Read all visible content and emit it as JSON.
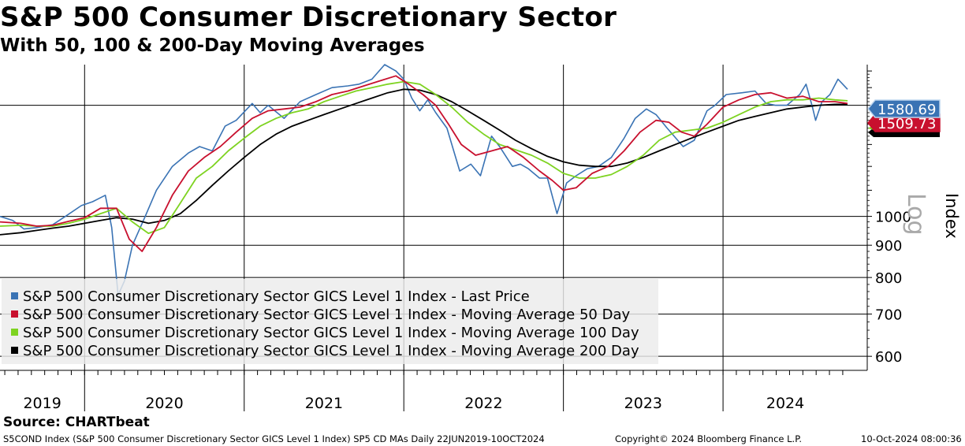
{
  "header": {
    "title": "S&P 500 Consumer Discretionary Sector",
    "subtitle": "With 50, 100 & 200-Day Moving Averages"
  },
  "footer": {
    "source": "Source: CHARTbeat",
    "description": "S5COND Index (S&P 500 Consumer Discretionary Sector GICS Level 1 Index) SP5 CD MAs  Daily 22JUN2019-10OCT2024",
    "copyright": "Copyright© 2024 Bloomberg Finance L.P.",
    "timestamp": "10-Oct-2024 08:00:36"
  },
  "colors": {
    "last_price": "#3a73b4",
    "ma50": "#c8102e",
    "ma100": "#7ed321",
    "ma200": "#000000",
    "label_box": "#3a73b4",
    "label_border": "#bcd5ef"
  },
  "chart_data": {
    "type": "line",
    "scale": "log",
    "title": "S&P 500 Consumer Discretionary Sector",
    "subtitle": "With 50, 100 & 200-Day Moving Averages",
    "ylabel": "Index",
    "scale_label": "Log",
    "ylim": [
      570,
      1740
    ],
    "y_ticks": [
      600,
      700,
      800,
      900,
      1000
    ],
    "x_range": [
      2019.47,
      2024.78
    ],
    "x_ticks": [
      "2019",
      "2020",
      "2021",
      "2022",
      "2023",
      "2024"
    ],
    "grid": true,
    "legend_position": "bottom-left",
    "last_values": {
      "last_price": "1580.69",
      "ma50": "1509.73"
    },
    "series": [
      {
        "name": "S&P 500 Consumer Discretionary Sector GICS Level 1 Index - Last Price",
        "color": "#3a73b4",
        "points": [
          [
            2019.47,
            1000
          ],
          [
            2019.55,
            985
          ],
          [
            2019.62,
            955
          ],
          [
            2019.7,
            960
          ],
          [
            2019.8,
            970
          ],
          [
            2019.88,
            1000
          ],
          [
            2019.98,
            1040
          ],
          [
            2020.05,
            1055
          ],
          [
            2020.13,
            1080
          ],
          [
            2020.17,
            960
          ],
          [
            2020.21,
            750
          ],
          [
            2020.25,
            790
          ],
          [
            2020.3,
            900
          ],
          [
            2020.38,
            1000
          ],
          [
            2020.45,
            1100
          ],
          [
            2020.55,
            1200
          ],
          [
            2020.65,
            1260
          ],
          [
            2020.72,
            1290
          ],
          [
            2020.8,
            1270
          ],
          [
            2020.88,
            1390
          ],
          [
            2020.95,
            1420
          ],
          [
            2021.05,
            1510
          ],
          [
            2021.1,
            1460
          ],
          [
            2021.15,
            1500
          ],
          [
            2021.25,
            1430
          ],
          [
            2021.35,
            1520
          ],
          [
            2021.45,
            1560
          ],
          [
            2021.55,
            1600
          ],
          [
            2021.65,
            1610
          ],
          [
            2021.72,
            1620
          ],
          [
            2021.8,
            1650
          ],
          [
            2021.88,
            1740
          ],
          [
            2021.95,
            1700
          ],
          [
            2022.0,
            1650
          ],
          [
            2022.05,
            1540
          ],
          [
            2022.1,
            1470
          ],
          [
            2022.15,
            1530
          ],
          [
            2022.2,
            1460
          ],
          [
            2022.27,
            1380
          ],
          [
            2022.35,
            1180
          ],
          [
            2022.42,
            1210
          ],
          [
            2022.48,
            1160
          ],
          [
            2022.55,
            1340
          ],
          [
            2022.6,
            1290
          ],
          [
            2022.68,
            1200
          ],
          [
            2022.73,
            1210
          ],
          [
            2022.78,
            1190
          ],
          [
            2022.85,
            1150
          ],
          [
            2022.9,
            1150
          ],
          [
            2022.96,
            1010
          ],
          [
            2023.02,
            1130
          ],
          [
            2023.08,
            1160
          ],
          [
            2023.15,
            1190
          ],
          [
            2023.22,
            1200
          ],
          [
            2023.3,
            1240
          ],
          [
            2023.38,
            1330
          ],
          [
            2023.45,
            1430
          ],
          [
            2023.52,
            1480
          ],
          [
            2023.58,
            1450
          ],
          [
            2023.65,
            1380
          ],
          [
            2023.75,
            1290
          ],
          [
            2023.82,
            1320
          ],
          [
            2023.9,
            1470
          ],
          [
            2023.95,
            1500
          ],
          [
            2024.02,
            1560
          ],
          [
            2024.12,
            1570
          ],
          [
            2024.2,
            1580
          ],
          [
            2024.27,
            1510
          ],
          [
            2024.33,
            1500
          ],
          [
            2024.4,
            1500
          ],
          [
            2024.48,
            1560
          ],
          [
            2024.52,
            1620
          ],
          [
            2024.56,
            1490
          ],
          [
            2024.58,
            1420
          ],
          [
            2024.62,
            1520
          ],
          [
            2024.67,
            1560
          ],
          [
            2024.72,
            1650
          ],
          [
            2024.75,
            1620
          ],
          [
            2024.78,
            1590
          ]
        ]
      },
      {
        "name": "S&P 500 Consumer Discretionary Sector GICS Level 1 Index - Moving Average 50 Day",
        "color": "#c8102e",
        "points": [
          [
            2019.47,
            980
          ],
          [
            2019.6,
            975
          ],
          [
            2019.7,
            965
          ],
          [
            2019.8,
            968
          ],
          [
            2019.9,
            982
          ],
          [
            2020.0,
            995
          ],
          [
            2020.1,
            1030
          ],
          [
            2020.2,
            1030
          ],
          [
            2020.28,
            920
          ],
          [
            2020.36,
            880
          ],
          [
            2020.45,
            960
          ],
          [
            2020.55,
            1080
          ],
          [
            2020.65,
            1180
          ],
          [
            2020.75,
            1240
          ],
          [
            2020.85,
            1290
          ],
          [
            2020.95,
            1360
          ],
          [
            2021.05,
            1430
          ],
          [
            2021.15,
            1470
          ],
          [
            2021.25,
            1480
          ],
          [
            2021.35,
            1490
          ],
          [
            2021.45,
            1520
          ],
          [
            2021.55,
            1560
          ],
          [
            2021.65,
            1580
          ],
          [
            2021.75,
            1610
          ],
          [
            2021.85,
            1640
          ],
          [
            2021.95,
            1670
          ],
          [
            2022.03,
            1620
          ],
          [
            2022.12,
            1560
          ],
          [
            2022.2,
            1500
          ],
          [
            2022.28,
            1400
          ],
          [
            2022.36,
            1300
          ],
          [
            2022.45,
            1250
          ],
          [
            2022.55,
            1270
          ],
          [
            2022.65,
            1290
          ],
          [
            2022.75,
            1240
          ],
          [
            2022.85,
            1180
          ],
          [
            2022.93,
            1140
          ],
          [
            2023.0,
            1100
          ],
          [
            2023.08,
            1110
          ],
          [
            2023.18,
            1170
          ],
          [
            2023.28,
            1200
          ],
          [
            2023.38,
            1270
          ],
          [
            2023.48,
            1360
          ],
          [
            2023.58,
            1420
          ],
          [
            2023.66,
            1410
          ],
          [
            2023.74,
            1360
          ],
          [
            2023.82,
            1340
          ],
          [
            2023.9,
            1400
          ],
          [
            2024.0,
            1490
          ],
          [
            2024.1,
            1530
          ],
          [
            2024.2,
            1560
          ],
          [
            2024.3,
            1570
          ],
          [
            2024.4,
            1540
          ],
          [
            2024.5,
            1550
          ],
          [
            2024.6,
            1520
          ],
          [
            2024.7,
            1520
          ],
          [
            2024.78,
            1510
          ]
        ]
      },
      {
        "name": "S&P 500 Consumer Discretionary Sector GICS Level 1 Index - Moving Average 100 Day",
        "color": "#7ed321",
        "points": [
          [
            2019.47,
            965
          ],
          [
            2019.6,
            968
          ],
          [
            2019.7,
            965
          ],
          [
            2019.8,
            965
          ],
          [
            2019.9,
            975
          ],
          [
            2020.0,
            990
          ],
          [
            2020.1,
            1010
          ],
          [
            2020.2,
            1030
          ],
          [
            2020.3,
            980
          ],
          [
            2020.4,
            940
          ],
          [
            2020.5,
            960
          ],
          [
            2020.6,
            1050
          ],
          [
            2020.7,
            1150
          ],
          [
            2020.8,
            1200
          ],
          [
            2020.9,
            1270
          ],
          [
            2021.0,
            1330
          ],
          [
            2021.1,
            1390
          ],
          [
            2021.2,
            1430
          ],
          [
            2021.3,
            1460
          ],
          [
            2021.4,
            1480
          ],
          [
            2021.5,
            1520
          ],
          [
            2021.6,
            1550
          ],
          [
            2021.7,
            1580
          ],
          [
            2021.8,
            1600
          ],
          [
            2021.9,
            1620
          ],
          [
            2022.0,
            1635
          ],
          [
            2022.1,
            1620
          ],
          [
            2022.2,
            1560
          ],
          [
            2022.3,
            1490
          ],
          [
            2022.4,
            1410
          ],
          [
            2022.5,
            1350
          ],
          [
            2022.6,
            1300
          ],
          [
            2022.7,
            1275
          ],
          [
            2022.8,
            1250
          ],
          [
            2022.9,
            1215
          ],
          [
            2023.0,
            1170
          ],
          [
            2023.1,
            1150
          ],
          [
            2023.2,
            1150
          ],
          [
            2023.3,
            1165
          ],
          [
            2023.4,
            1200
          ],
          [
            2023.5,
            1250
          ],
          [
            2023.6,
            1320
          ],
          [
            2023.7,
            1360
          ],
          [
            2023.8,
            1370
          ],
          [
            2023.9,
            1380
          ],
          [
            2024.0,
            1410
          ],
          [
            2024.1,
            1450
          ],
          [
            2024.2,
            1490
          ],
          [
            2024.3,
            1520
          ],
          [
            2024.4,
            1530
          ],
          [
            2024.5,
            1530
          ],
          [
            2024.6,
            1540
          ],
          [
            2024.7,
            1530
          ],
          [
            2024.78,
            1525
          ]
        ]
      },
      {
        "name": "S&P 500 Consumer Discretionary Sector GICS Level 1 Index - Moving Average 200 Day",
        "color": "#000000",
        "points": [
          [
            2019.47,
            935
          ],
          [
            2019.6,
            942
          ],
          [
            2019.7,
            950
          ],
          [
            2019.8,
            958
          ],
          [
            2019.9,
            965
          ],
          [
            2020.0,
            975
          ],
          [
            2020.1,
            985
          ],
          [
            2020.2,
            995
          ],
          [
            2020.3,
            990
          ],
          [
            2020.4,
            975
          ],
          [
            2020.5,
            985
          ],
          [
            2020.6,
            1010
          ],
          [
            2020.7,
            1060
          ],
          [
            2020.8,
            1120
          ],
          [
            2020.9,
            1180
          ],
          [
            2021.0,
            1240
          ],
          [
            2021.1,
            1300
          ],
          [
            2021.2,
            1350
          ],
          [
            2021.3,
            1390
          ],
          [
            2021.4,
            1420
          ],
          [
            2021.5,
            1450
          ],
          [
            2021.6,
            1480
          ],
          [
            2021.7,
            1510
          ],
          [
            2021.8,
            1540
          ],
          [
            2021.9,
            1570
          ],
          [
            2022.0,
            1590
          ],
          [
            2022.1,
            1585
          ],
          [
            2022.2,
            1560
          ],
          [
            2022.3,
            1520
          ],
          [
            2022.4,
            1470
          ],
          [
            2022.5,
            1420
          ],
          [
            2022.6,
            1370
          ],
          [
            2022.7,
            1320
          ],
          [
            2022.8,
            1280
          ],
          [
            2022.9,
            1245
          ],
          [
            2023.0,
            1220
          ],
          [
            2023.1,
            1205
          ],
          [
            2023.2,
            1200
          ],
          [
            2023.3,
            1200
          ],
          [
            2023.4,
            1215
          ],
          [
            2023.5,
            1240
          ],
          [
            2023.6,
            1270
          ],
          [
            2023.7,
            1300
          ],
          [
            2023.8,
            1330
          ],
          [
            2023.9,
            1360
          ],
          [
            2024.0,
            1390
          ],
          [
            2024.1,
            1420
          ],
          [
            2024.2,
            1440
          ],
          [
            2024.3,
            1460
          ],
          [
            2024.4,
            1480
          ],
          [
            2024.5,
            1490
          ],
          [
            2024.6,
            1500
          ],
          [
            2024.7,
            1505
          ],
          [
            2024.78,
            1505
          ]
        ]
      }
    ]
  }
}
